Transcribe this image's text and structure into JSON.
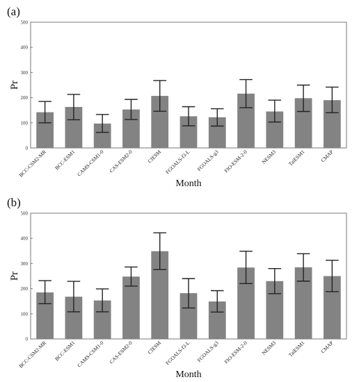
{
  "chart_data": [
    {
      "type": "bar",
      "panel_label": "(a)",
      "categories": [
        "BCC-CSM2-MR",
        "BCC-ESM1",
        "CAMS-CSM1-0",
        "CAS-ESM2-0",
        "CIESM",
        "FGOALS-f3-L",
        "FGOALS-g3",
        "FIO-ESM-2-0",
        "NESM3",
        "TaiESM1",
        "CMAP"
      ],
      "values": [
        142,
        163,
        97,
        153,
        207,
        126,
        122,
        216,
        145,
        198,
        190
      ],
      "error_low": [
        100,
        112,
        62,
        113,
        146,
        88,
        87,
        160,
        103,
        145,
        140
      ],
      "error_high": [
        185,
        213,
        133,
        193,
        268,
        164,
        156,
        272,
        190,
        250,
        242
      ],
      "xlabel": "Month",
      "ylabel": "Pr",
      "ylim": [
        0,
        500
      ],
      "yticks": [
        "0",
        "100",
        "200",
        "300",
        "400",
        "500"
      ],
      "grid": false,
      "legend": "none"
    },
    {
      "type": "bar",
      "panel_label": "(b)",
      "categories": [
        "BCC-CSM2-MR",
        "BCC-ESM1",
        "CAMS-CSM1-0",
        "CAS-ESM2-0",
        "CIESM",
        "FGOALS-f3-L",
        "FGOALS-g3",
        "FIO-ESM-2-0",
        "NESM3",
        "TaiESM1",
        "CMAP"
      ],
      "values": [
        185,
        168,
        153,
        248,
        349,
        182,
        149,
        284,
        230,
        285,
        250
      ],
      "error_low": [
        140,
        108,
        108,
        210,
        276,
        123,
        107,
        220,
        180,
        230,
        188
      ],
      "error_high": [
        232,
        229,
        199,
        286,
        422,
        240,
        192,
        349,
        280,
        339,
        313
      ],
      "xlabel": "Month",
      "ylabel": "Pr",
      "ylim": [
        0,
        500
      ],
      "yticks": [
        "0",
        "100",
        "200",
        "300",
        "400",
        "500"
      ],
      "grid": false,
      "legend": "none"
    }
  ],
  "colors": {
    "bar": "#838383",
    "error_bar": "#222222",
    "axis": "#777777"
  }
}
